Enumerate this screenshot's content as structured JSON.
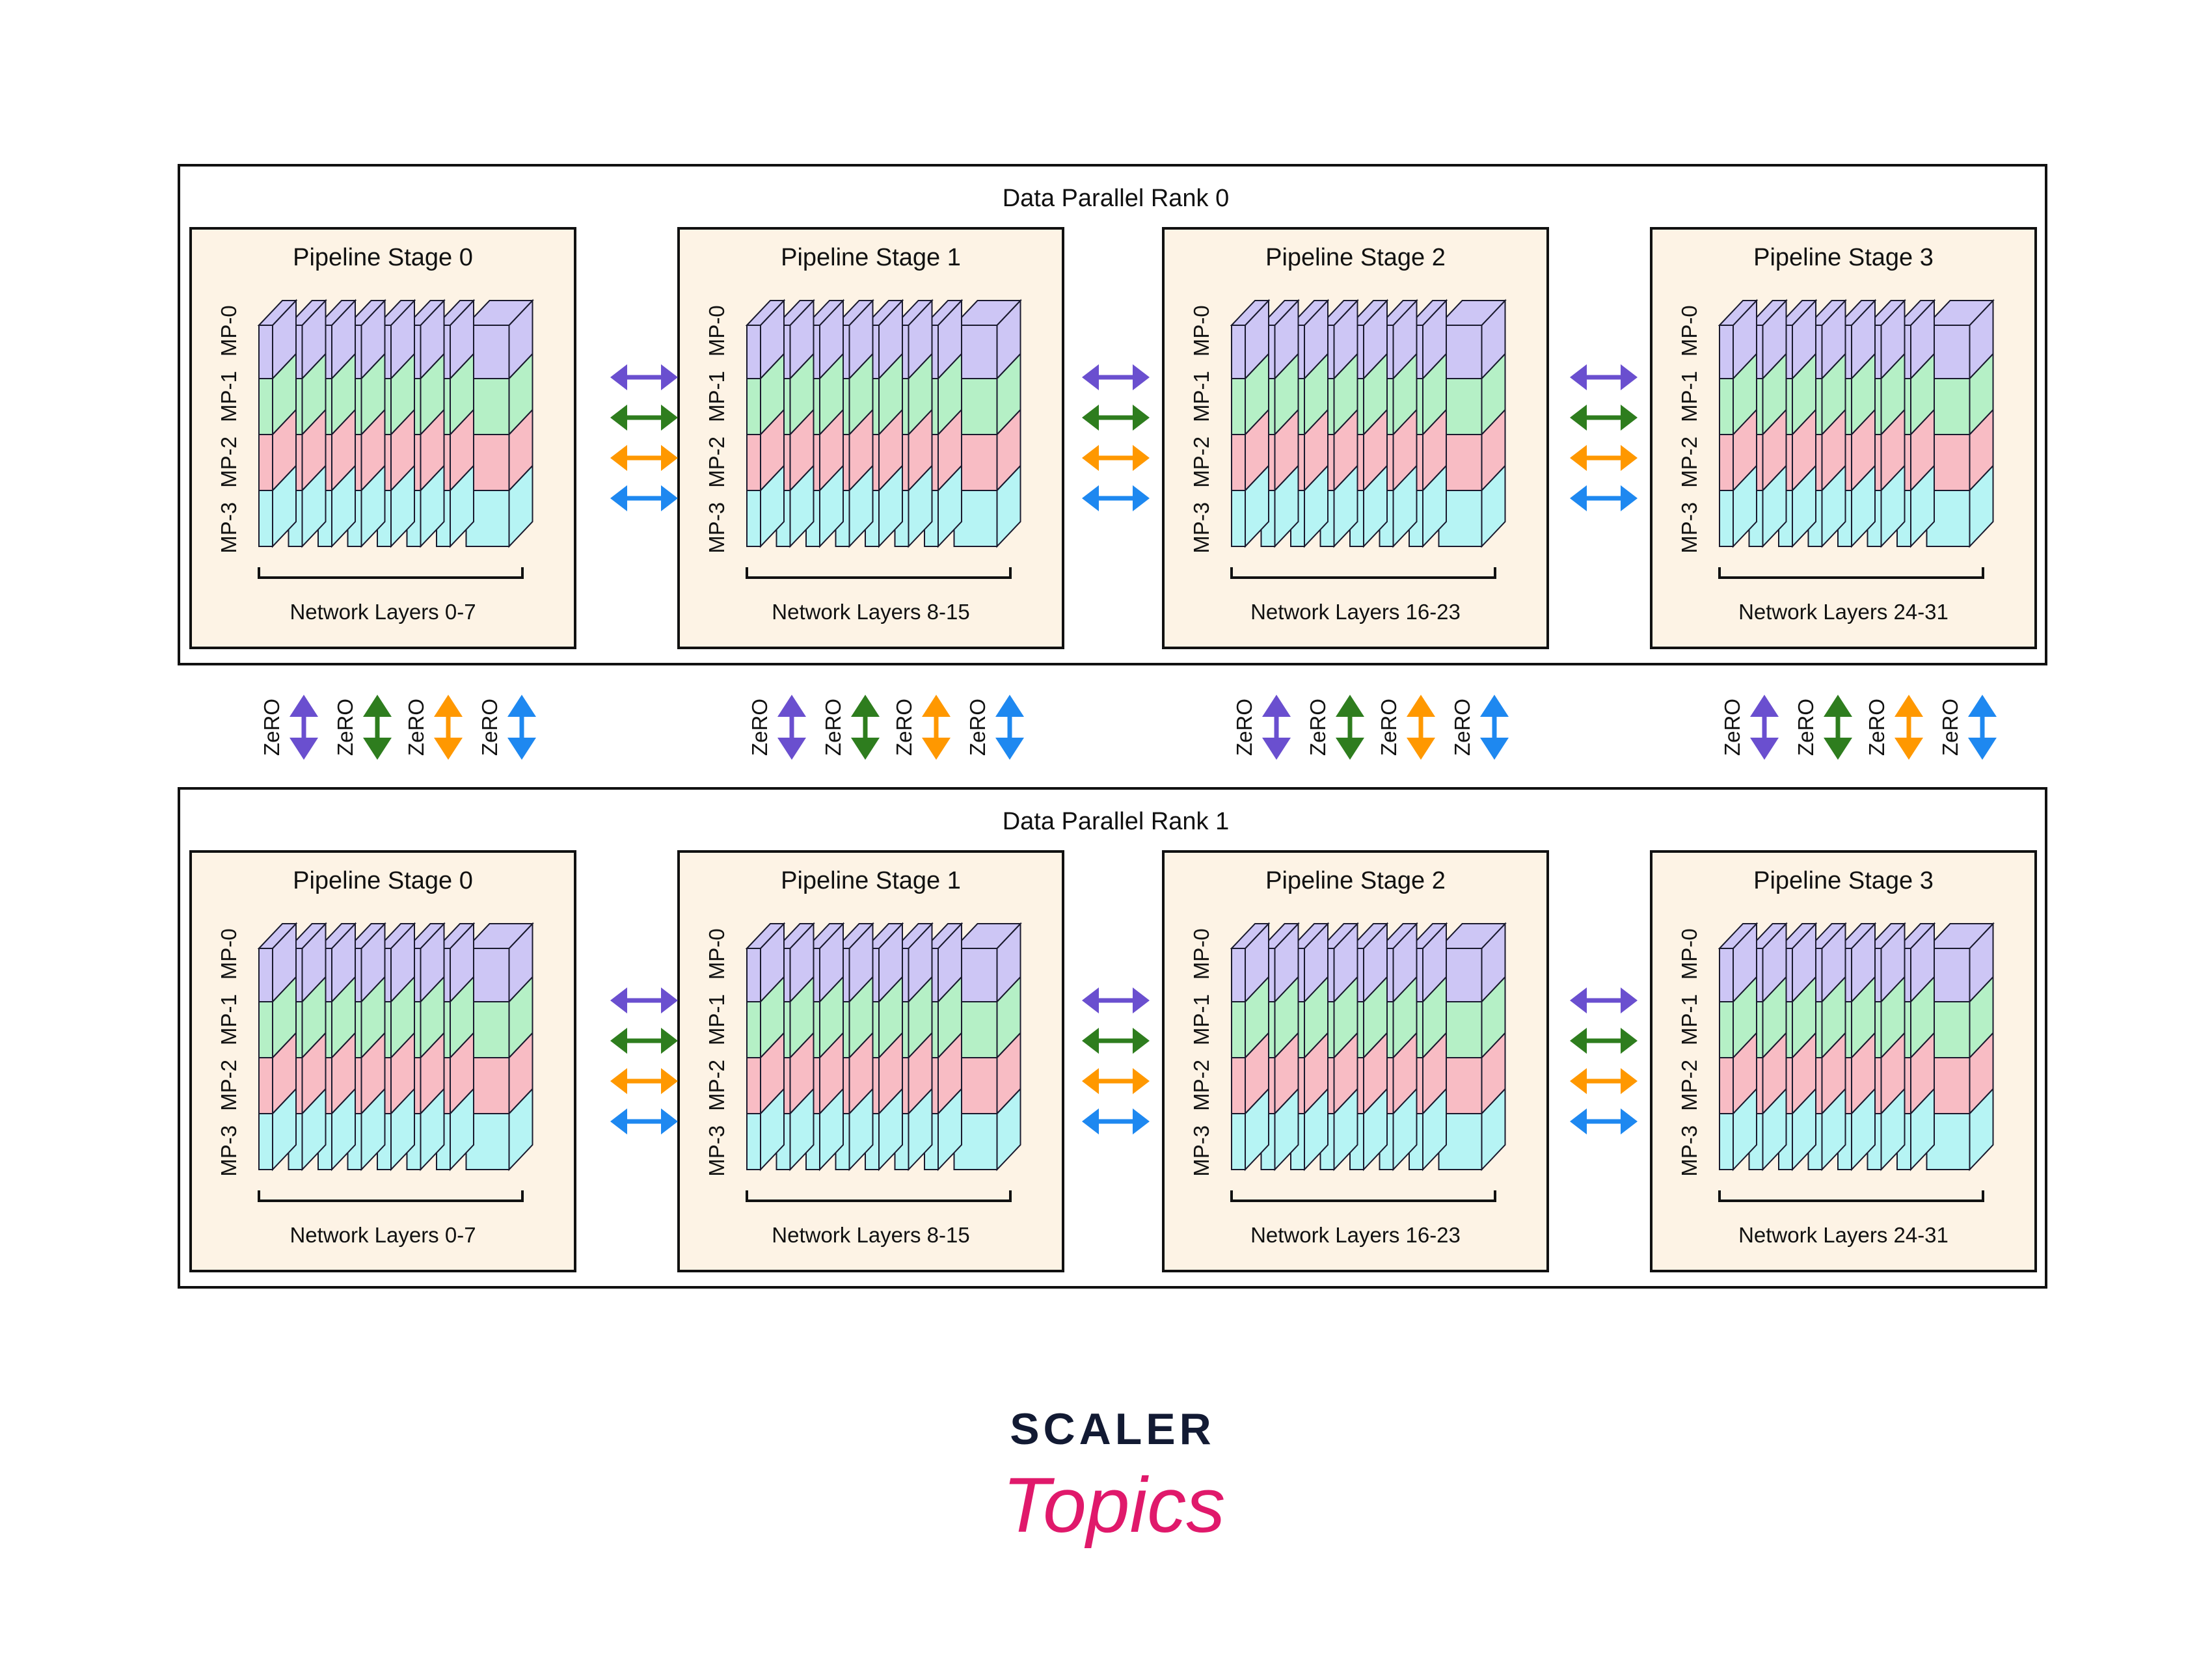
{
  "colors": {
    "mp0": "#cdc6f5",
    "mp1": "#b5f0c6",
    "mp2": "#f8bcc4",
    "mp3": "#b6f4f4",
    "stage_bg": "#fdf3e5",
    "outline": "#1a1a2e",
    "arrows": [
      "#6a4fcf",
      "#2e7d1e",
      "#ff9800",
      "#1e88f0"
    ],
    "brand_dark": "#121a33",
    "brand_pink": "#e0196b"
  },
  "ranks": [
    {
      "title": "Data Parallel Rank 0",
      "stages": [
        {
          "title": "Pipeline Stage 0",
          "layers": "Network Layers 0-7"
        },
        {
          "title": "Pipeline Stage 1",
          "layers": "Network Layers 8-15"
        },
        {
          "title": "Pipeline Stage 2",
          "layers": "Network Layers 16-23"
        },
        {
          "title": "Pipeline Stage 3",
          "layers": "Network Layers 24-31"
        }
      ]
    },
    {
      "title": "Data Parallel Rank 1",
      "stages": [
        {
          "title": "Pipeline Stage 0",
          "layers": "Network Layers 0-7"
        },
        {
          "title": "Pipeline Stage 1",
          "layers": "Network Layers 8-15"
        },
        {
          "title": "Pipeline Stage 2",
          "layers": "Network Layers 16-23"
        },
        {
          "title": "Pipeline Stage 3",
          "layers": "Network Layers 24-31"
        }
      ]
    }
  ],
  "mp_labels": [
    "MP-3",
    "MP-2",
    "MP-1",
    "MP-0"
  ],
  "zero_label": "ZeRO",
  "brand": {
    "top": "SCALER",
    "bottom": "Topics"
  },
  "icons": {
    "pipeline_arrow": "double-headed-horizontal-arrow-icon",
    "zero_arrow": "double-headed-vertical-arrow-icon"
  }
}
